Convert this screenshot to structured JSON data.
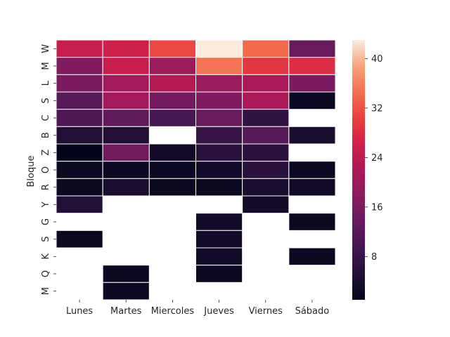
{
  "chart_data": {
    "type": "heatmap",
    "title": "",
    "xlabel": "",
    "ylabel": "Bloque",
    "x_categories": [
      "Lunes",
      "Martes",
      "Miercoles",
      "Jueves",
      "Viernes",
      "Sábado"
    ],
    "y_categories": [
      "W",
      "M",
      "L",
      "S",
      "C",
      "B",
      "Z",
      "O",
      "R",
      "Y",
      "G",
      "S",
      "K",
      "Q",
      "M"
    ],
    "values": [
      [
        25,
        26,
        31,
        43,
        34,
        14
      ],
      [
        17,
        25,
        20,
        35,
        29,
        28
      ],
      [
        16,
        21,
        23,
        20,
        22,
        16
      ],
      [
        12,
        21,
        15,
        17,
        22,
        2
      ],
      [
        11,
        13,
        10,
        14,
        7,
        null
      ],
      [
        5,
        5,
        null,
        8,
        12,
        4
      ],
      [
        1,
        15,
        3,
        6,
        6,
        null
      ],
      [
        2,
        2,
        2,
        3,
        6,
        2
      ],
      [
        2,
        4,
        2,
        2,
        4,
        3
      ],
      [
        5,
        null,
        null,
        null,
        3,
        null
      ],
      [
        null,
        null,
        null,
        3,
        null,
        2
      ],
      [
        2,
        null,
        null,
        3,
        null,
        null
      ],
      [
        null,
        null,
        null,
        3,
        null,
        2
      ],
      [
        null,
        2,
        null,
        2,
        null,
        null
      ],
      [
        null,
        2,
        null,
        null,
        null,
        null
      ]
    ],
    "colorbar": {
      "colormap": "rocket",
      "range": [
        1,
        43
      ],
      "ticks": [
        8,
        16,
        24,
        32,
        40
      ]
    }
  }
}
